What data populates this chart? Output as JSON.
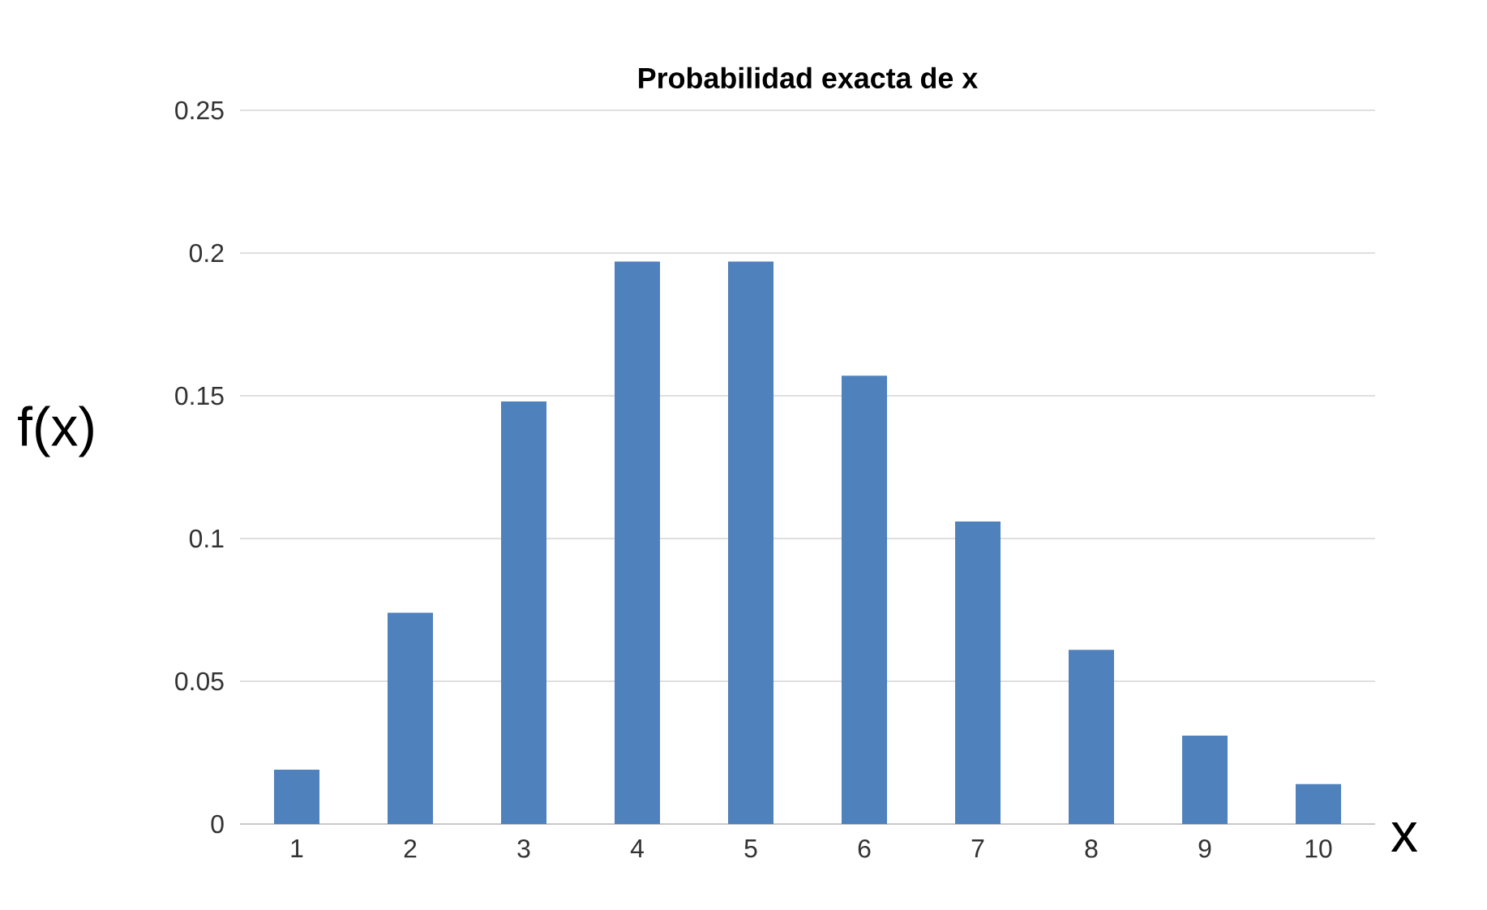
{
  "chart_data": {
    "type": "bar",
    "title": "Probabilidad exacta de x",
    "xlabel": "x",
    "ylabel": "f(x)",
    "categories": [
      "1",
      "2",
      "3",
      "4",
      "5",
      "6",
      "7",
      "8",
      "9",
      "10"
    ],
    "values": [
      0.019,
      0.074,
      0.148,
      0.197,
      0.197,
      0.157,
      0.106,
      0.061,
      0.031,
      0.014
    ],
    "color": "#4f81bd",
    "ylim": [
      0,
      0.25
    ],
    "yticks": [
      0,
      0.05,
      0.1,
      0.15,
      0.2,
      0.25
    ],
    "grid": "y"
  }
}
